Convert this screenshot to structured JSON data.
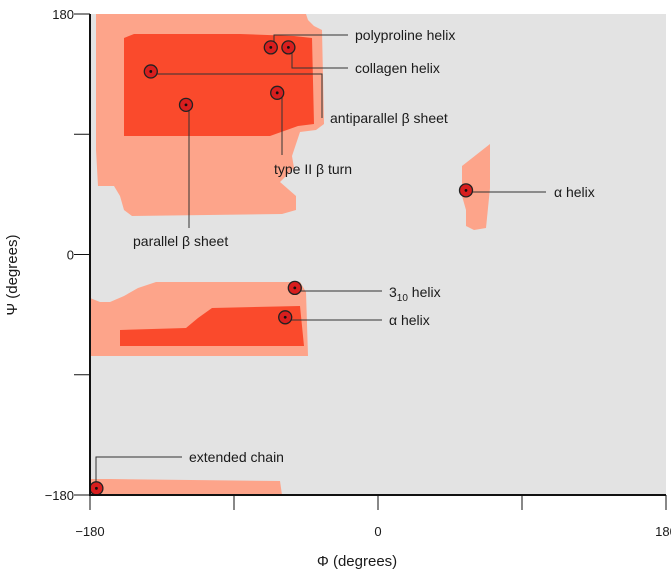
{
  "chart_data": {
    "type": "scatter",
    "title": "",
    "xlabel": "Φ (degrees)",
    "ylabel": "Ψ (degrees)",
    "xlim": [
      -180,
      180
    ],
    "ylim": [
      -180,
      180
    ],
    "x_ticks": [
      -180,
      -90,
      0,
      90,
      180
    ],
    "x_tick_labels": [
      "−180",
      "",
      "0",
      "",
      "180"
    ],
    "y_ticks": [
      -180,
      -90,
      0,
      90,
      180
    ],
    "y_tick_labels": [
      "−180",
      "",
      "0",
      "",
      "180"
    ],
    "grid": false,
    "colors": {
      "background": "#e3e3e3",
      "allowed": "#fda48a",
      "favored": "#fa4a2c",
      "point_fill": "#d81e1e",
      "axis": "#111111"
    },
    "points": [
      {
        "label": "polyproline helix",
        "x": -67,
        "y": 155
      },
      {
        "label": "collagen helix",
        "x": -56,
        "y": 155
      },
      {
        "label": "antiparallel β sheet",
        "x": -142,
        "y": 137
      },
      {
        "label": "parallel β sheet",
        "x": -120,
        "y": 112
      },
      {
        "label": "type II β turn",
        "x": -63,
        "y": 121
      },
      {
        "label": "α helix",
        "x": 55,
        "y": 48
      },
      {
        "label": "3₁₀ helix",
        "x": -52,
        "y": -25
      },
      {
        "label": "α helix",
        "x": -58,
        "y": -47
      },
      {
        "label": "extended chain",
        "x": -176,
        "y": -175
      }
    ],
    "annotations": {
      "polyproline": "polyproline helix",
      "collagen": "collagen helix",
      "antiparallel": "antiparallel β sheet",
      "type2turn": "type II β turn",
      "parallel": "parallel β sheet",
      "alpha_left": "α helix",
      "helix310_main": "3",
      "helix310_sub": "10",
      "helix310_rest": " helix",
      "alpha_right": "α helix",
      "extended": "extended chain"
    }
  }
}
